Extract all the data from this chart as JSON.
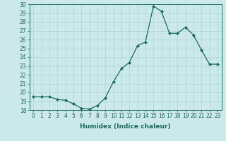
{
  "x": [
    0,
    1,
    2,
    3,
    4,
    5,
    6,
    7,
    8,
    9,
    10,
    11,
    12,
    13,
    14,
    15,
    16,
    17,
    18,
    19,
    20,
    21,
    22,
    23
  ],
  "y": [
    19.5,
    19.5,
    19.5,
    19.2,
    19.1,
    18.7,
    18.2,
    18.1,
    18.5,
    19.4,
    21.2,
    22.7,
    23.4,
    25.3,
    25.7,
    29.8,
    29.2,
    26.7,
    26.7,
    27.4,
    26.5,
    24.8,
    23.2,
    23.2
  ],
  "line_color": "#1a6b5a",
  "marker": "D",
  "marker_size": 2.0,
  "bg_color": "#cce9e9",
  "grid_color": "#aad4d4",
  "xlabel": "Humidex (Indice chaleur)",
  "xlim": [
    -0.5,
    23.5
  ],
  "ylim": [
    18,
    30
  ],
  "yticks": [
    18,
    19,
    20,
    21,
    22,
    23,
    24,
    25,
    26,
    27,
    28,
    29,
    30
  ],
  "xticks": [
    0,
    1,
    2,
    3,
    4,
    5,
    6,
    7,
    8,
    9,
    10,
    11,
    12,
    13,
    14,
    15,
    16,
    17,
    18,
    19,
    20,
    21,
    22,
    23
  ],
  "tick_fontsize": 5.5,
  "xlabel_fontsize": 6.5
}
